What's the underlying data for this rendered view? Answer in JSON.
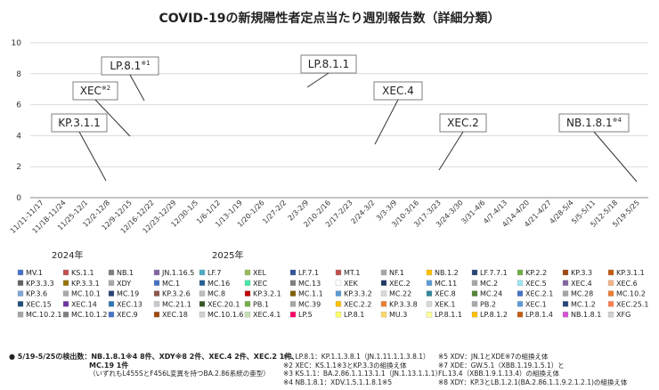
{
  "chart_data": {
    "type": "bar",
    "stacked": true,
    "title": "COVID-19の新規陽性者定点当たり週別報告数（詳細分類）",
    "xlabel": "",
    "ylabel": "",
    "ylim": [
      0,
      10
    ],
    "y_ticks": [
      0,
      2,
      4,
      6,
      8,
      10
    ],
    "grid": true,
    "categories": [
      "11/11-11/17",
      "11/18-11/24",
      "11/25-12/1",
      "12/2-12/8",
      "12/9-12/15",
      "12/16-12/22",
      "12/23-12/29",
      "12/30-1/5",
      "1/6-1/12",
      "1/13-1/19",
      "1/20-1/26",
      "1/27-2/2",
      "2/3-2/9",
      "2/10-2/16",
      "2/17-2/23",
      "2/24-3/2",
      "3/3-3/9",
      "3/10-3/16",
      "3/17-3/23",
      "3/24-3/30",
      "3/31-4/6",
      "4/7-4/13",
      "4/14-4/20",
      "4/21-4/27",
      "4/28-5/4",
      "5/5-5/11",
      "5/12-5/18",
      "5/19-5/25"
    ],
    "year_labels": [
      {
        "text": "2024年"
      },
      {
        "text": "2025年"
      }
    ],
    "callouts": [
      "LP.8.1",
      "LP.8.1.1",
      "XEC",
      "XEC.4",
      "KP.3.1.1",
      "XEC.2",
      "NB.1.8.1"
    ],
    "callout_marks": [
      "※1",
      "※2",
      "※4"
    ],
    "legend": [
      "MV.1",
      "KS.1.1",
      "NB.1",
      "JN.1.16.5",
      "LF.7",
      "XEL",
      "LF.7.1",
      "MT.1",
      "NF.1",
      "NB.1.2",
      "LF.7.7.1",
      "KP.2.2",
      "KP.3.3",
      "KP.3.1.1",
      "KP.3.3.3",
      "KP.3.3.1",
      "XDY",
      "MC.1",
      "MC.16",
      "XEC",
      "MC.13",
      "XEK",
      "XEC.2",
      "MC.11",
      "MC.2",
      "XEC.5",
      "XEC.4",
      "XEC.6",
      "KP.3.6",
      "MC.10.1",
      "MC.19",
      "KP.3.2.6",
      "MC.8",
      "KP.3.2.1",
      "MC.1.1",
      "KP.3.3.2",
      "MC.22",
      "XEC.8",
      "MC.24",
      "XEC.2.1",
      "MC.28",
      "MC.10.2",
      "XEC.15",
      "XEC.14",
      "XEC.13",
      "MC.21.1",
      "XEC.20.1",
      "PB.1",
      "MC.39",
      "XEC.2.2",
      "KP.3.3.8",
      "XEK.1",
      "PB.2",
      "XEC.1",
      "MC.1.2",
      "XEC.25.1",
      "MC.10.2.1",
      "MC.10.1.2",
      "XEC.9",
      "XEC.18",
      "MC.10.1.6",
      "XEC.4.1",
      "LP.5",
      "LP.8.1",
      "MU.3",
      "LP.8.1.1",
      "LP.8.1.2",
      "LP.8.1.4",
      "NB.1.8.1",
      "XFG"
    ],
    "legend_colors": [
      "#4472c4",
      "#c0504d",
      "#7f7f7f",
      "#8064a2",
      "#4bacc6",
      "#9bbb59",
      "#2f5597",
      "#c0504d",
      "#a5a5a5",
      "#ffc000",
      "#264478",
      "#70ad47",
      "#9e480e",
      "#c55a11",
      "#636363",
      "#997300",
      "#a9a9a9",
      "#4472c4",
      "#255e91",
      "#43e8a6",
      "#7f7f7f",
      "#ffffff",
      "#1f3864",
      "#5b9bd5",
      "#a5a5a5",
      "#9ce6f4",
      "#8064a2",
      "#f4b183",
      "#7ea6d9",
      "#a9a9a9",
      "#264478",
      "#8c564b",
      "#bdbdbd",
      "#c00000",
      "#7f6000",
      "#5b9bd5",
      "#d9d9d9",
      "#31859c",
      "#548235",
      "#4472c4",
      "#a5a5a5",
      "#ed7d31",
      "#1f4e79",
      "#7030a0",
      "#2e75b6",
      "#c9c9c9",
      "#375623",
      "#70ad47",
      "#a6a6a6",
      "#ffc000",
      "#ed7d31",
      "#d9d9d9",
      "#a9a9a9",
      "#5b9bd5",
      "#264478",
      "#ff7f50",
      "#a5a5a5",
      "#7f7f7f",
      "#4472c4",
      "#9e480e",
      "#d0d0d0",
      "#c5e0b4",
      "#ff0066",
      "#ffff66",
      "#ffd966",
      "#ffff99",
      "#ffc000",
      "#c55a11",
      "#d64fd6",
      "#d0d0d0"
    ],
    "series": []
  },
  "footnotes": {
    "detect": {
      "lead": "5/19-5/25の検出数：",
      "line1": "NB.1.8.1※4 8件、XDY※8 2件、XEC.4 2件、XEC.2 1件、",
      "line2": "MC.19 1件",
      "line3": "（いずれもL455SとF456L変異を持つBA.2.86系統の亜型）"
    },
    "col2": [
      "※1 LP.8.1：KP.1.1.3.8.1（JN.1.11.1.1.3.8.1）",
      "※2 XEC：KS.1.1※3とKP.3.3の組換え体",
      "※3 KS.1.1：BA.2.86.1.1.13.1.1（JN.1.13.1.1.1）",
      "※4 NB.1.8.1：XDV.1.5.1.1.8.1※5"
    ],
    "col3": [
      "※5 XDV：JN.1とXDE※7の組換え体",
      "※7 XDE：GW.5.1（XBB.1.19.1.5.1）と",
      "FL.13.4（XBB.1.9.1.13.4）の組換え体",
      "※8 XDY：KP.3とLB.1.2.1(BA.2.86.1.1.9.2.1.2.1)の組換え体"
    ]
  }
}
